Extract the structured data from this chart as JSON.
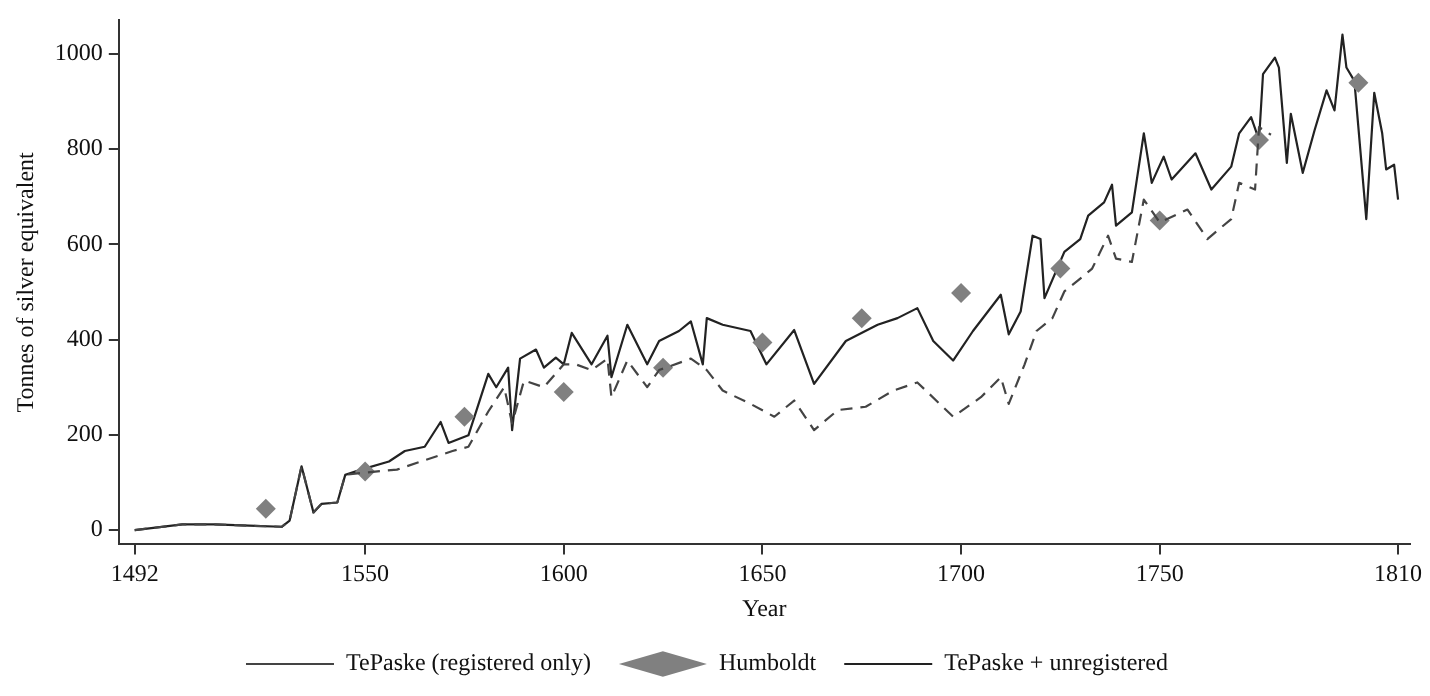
{
  "chart_data": {
    "type": "line",
    "xlabel": "Year",
    "ylabel": "Tonnes of silver equivalent",
    "xlim": [
      1488,
      1813
    ],
    "xticks": [
      1492,
      1550,
      1600,
      1650,
      1700,
      1750,
      1810
    ],
    "ylim": [
      -30,
      1070
    ],
    "yticks": [
      0,
      200,
      400,
      600,
      800,
      1000
    ],
    "grid": false,
    "legend": "bottom",
    "series": [
      {
        "name": "TePaske (registered only)",
        "color": "#444444",
        "line_style": "dashed",
        "marker": "none",
        "x": [
          1492,
          1504,
          1512,
          1529,
          1531,
          1534,
          1537,
          1539,
          1543,
          1545,
          1549,
          1558,
          1564,
          1572,
          1576,
          1581,
          1585,
          1587,
          1590,
          1595,
          1600,
          1603,
          1607,
          1611,
          1612,
          1616,
          1621,
          1624,
          1632,
          1636,
          1640,
          1647,
          1653,
          1658,
          1663,
          1669,
          1676,
          1683,
          1689,
          1698,
          1705,
          1710,
          1712,
          1716,
          1719,
          1723,
          1726,
          1730,
          1733,
          1737,
          1739,
          1743,
          1746,
          1750,
          1757,
          1762,
          1768,
          1770,
          1774,
          1775,
          1778
        ],
        "values": [
          0,
          12,
          12,
          7,
          20,
          134,
          37,
          55,
          58,
          116,
          120,
          127,
          144,
          166,
          175,
          249,
          300,
          224,
          314,
          300,
          348,
          348,
          336,
          360,
          279,
          356,
          300,
          336,
          360,
          336,
          293,
          265,
          238,
          272,
          210,
          252,
          259,
          293,
          310,
          238,
          279,
          321,
          265,
          348,
          418,
          445,
          501,
          528,
          549,
          618,
          570,
          563,
          694,
          646,
          673,
          611,
          653,
          729,
          715,
          846,
          830
        ]
      },
      {
        "name": "Humboldt",
        "color": "#808080",
        "type": "scatter",
        "marker": "diamond",
        "x": [
          1525,
          1550,
          1575,
          1600,
          1625,
          1650,
          1675,
          1700,
          1725,
          1750,
          1775,
          1800
        ],
        "values": [
          45,
          123,
          238,
          290,
          341,
          394,
          445,
          498,
          549,
          650,
          819,
          939
        ]
      },
      {
        "name": "TePaske + unregistered",
        "color": "#222222",
        "line_style": "solid",
        "marker": "none",
        "x": [
          1492,
          1504,
          1512,
          1529,
          1531,
          1534,
          1537,
          1539,
          1543,
          1545,
          1549,
          1556,
          1560,
          1565,
          1569,
          1571,
          1576,
          1581,
          1583,
          1586,
          1587,
          1589,
          1593,
          1595,
          1598,
          1600,
          1602,
          1607,
          1611,
          1612,
          1616,
          1621,
          1624,
          1629,
          1632,
          1635,
          1636,
          1640,
          1647,
          1651,
          1658,
          1663,
          1671,
          1679,
          1684,
          1689,
          1693,
          1698,
          1703,
          1710,
          1712,
          1715,
          1718,
          1720,
          1721,
          1726,
          1730,
          1732,
          1736,
          1738,
          1739,
          1743,
          1746,
          1748,
          1751,
          1753,
          1759,
          1763,
          1768,
          1770,
          1773,
          1775,
          1776,
          1779,
          1780,
          1782,
          1783,
          1786,
          1789,
          1792,
          1794,
          1796,
          1797,
          1799,
          1802,
          1804,
          1806,
          1807,
          1809,
          1810
        ],
        "values": [
          0,
          12,
          12,
          7,
          20,
          134,
          37,
          55,
          58,
          116,
          127,
          144,
          166,
          175,
          227,
          183,
          199,
          328,
          300,
          341,
          210,
          360,
          379,
          341,
          362,
          348,
          414,
          348,
          408,
          321,
          431,
          348,
          397,
          418,
          438,
          348,
          445,
          431,
          418,
          348,
          420,
          307,
          397,
          431,
          445,
          466,
          397,
          356,
          418,
          494,
          411,
          459,
          618,
          611,
          487,
          584,
          611,
          660,
          688,
          725,
          639,
          667,
          833,
          729,
          784,
          736,
          791,
          715,
          763,
          833,
          867,
          819,
          957,
          992,
          971,
          771,
          874,
          750,
          840,
          923,
          881,
          1040,
          971,
          943,
          653,
          918,
          833,
          757,
          767,
          694
        ]
      }
    ]
  }
}
